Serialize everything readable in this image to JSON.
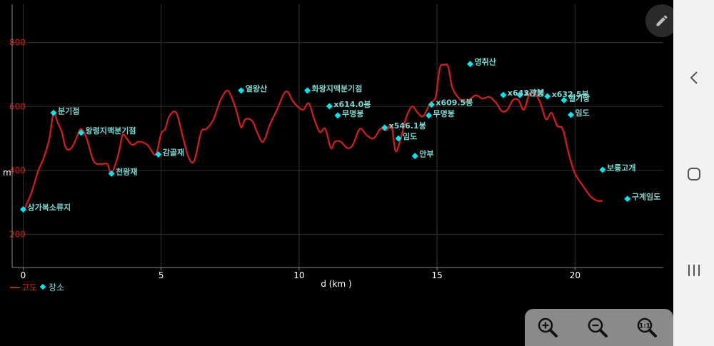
{
  "chart_data": {
    "type": "line",
    "xlabel": "d (km )",
    "ylabel": "m",
    "xlim": [
      -0.4,
      23.2
    ],
    "ylim": [
      96,
      920
    ],
    "x_ticks": [
      0,
      5,
      10,
      15,
      20
    ],
    "y_ticks": [
      200,
      400,
      600,
      800
    ],
    "grid": true,
    "legend": [
      {
        "label": "고도",
        "color": "#c81e1e",
        "shape": "line"
      },
      {
        "label": "장소",
        "color": "#00e6f0",
        "shape": "diamond"
      }
    ],
    "series": [
      {
        "name": "고도",
        "color": "#c81e1e",
        "x": [
          0.05,
          0.3,
          0.55,
          0.75,
          0.95,
          1.1,
          1.25,
          1.4,
          1.55,
          1.75,
          1.95,
          2.1,
          2.3,
          2.55,
          2.8,
          3.05,
          3.2,
          3.45,
          3.6,
          3.75,
          3.95,
          4.2,
          4.5,
          4.8,
          5.0,
          5.15,
          5.3,
          5.55,
          5.8,
          6.0,
          6.2,
          6.45,
          6.65,
          6.9,
          7.15,
          7.4,
          7.6,
          7.75,
          7.9,
          8.05,
          8.3,
          8.5,
          8.7,
          8.95,
          9.2,
          9.45,
          9.6,
          9.75,
          9.95,
          10.15,
          10.35,
          10.55,
          10.75,
          10.95,
          11.15,
          11.3,
          11.5,
          11.75,
          11.95,
          12.2,
          12.45,
          12.7,
          12.95,
          13.15,
          13.35,
          13.5,
          13.7,
          13.9,
          14.1,
          14.3,
          14.5,
          14.75,
          14.95,
          15.1,
          15.25,
          15.4,
          15.55,
          15.75,
          15.95,
          16.15,
          16.4,
          16.65,
          16.9,
          17.15,
          17.35,
          17.55,
          17.75,
          17.95,
          18.15,
          18.35,
          18.55,
          18.75,
          18.95,
          19.15,
          19.35,
          19.55,
          19.75,
          19.95,
          20.1,
          20.3,
          20.55,
          20.8,
          21.0
        ],
        "values": [
          280,
          330,
          400,
          440,
          500,
          580,
          550,
          520,
          470,
          470,
          505,
          530,
          500,
          430,
          420,
          420,
          390,
          450,
          510,
          500,
          480,
          490,
          480,
          450,
          515,
          530,
          570,
          580,
          500,
          440,
          430,
          520,
          530,
          560,
          620,
          650,
          620,
          580,
          535,
          560,
          555,
          515,
          490,
          545,
          590,
          640,
          645,
          620,
          600,
          590,
          610,
          560,
          520,
          530,
          470,
          490,
          490,
          470,
          480,
          530,
          510,
          500,
          530,
          525,
          540,
          460,
          505,
          570,
          600,
          580,
          570,
          610,
          630,
          720,
          730,
          725,
          660,
          630,
          615,
          620,
          635,
          625,
          630,
          610,
          585,
          590,
          620,
          620,
          590,
          640,
          640,
          610,
          560,
          580,
          540,
          530,
          460,
          400,
          375,
          350,
          320,
          305,
          305
        ]
      }
    ],
    "places": [
      {
        "name": "상가복소류지",
        "x": 0.0,
        "y": 278
      },
      {
        "name": "분기점",
        "x": 1.1,
        "y": 580
      },
      {
        "name": "왕령지맥분기점",
        "x": 2.1,
        "y": 518
      },
      {
        "name": "천왕재",
        "x": 3.2,
        "y": 390
      },
      {
        "name": "감골재",
        "x": 4.9,
        "y": 450
      },
      {
        "name": "열왕산",
        "x": 7.9,
        "y": 650
      },
      {
        "name": "화왕지맥분기점",
        "x": 10.3,
        "y": 650
      },
      {
        "name": "x614.0봉",
        "x": 11.1,
        "y": 601
      },
      {
        "name": "무명봉",
        "x": 11.4,
        "y": 572
      },
      {
        "name": "x546.1봉",
        "x": 13.1,
        "y": 534
      },
      {
        "name": "임도",
        "x": 13.6,
        "y": 500
      },
      {
        "name": "안부",
        "x": 14.2,
        "y": 445
      },
      {
        "name": "x609.5봉",
        "x": 14.8,
        "y": 606
      },
      {
        "name": "무명봉",
        "x": 14.7,
        "y": 572
      },
      {
        "name": "영취산",
        "x": 16.2,
        "y": 733
      },
      {
        "name": "x643.7봉",
        "x": 17.4,
        "y": 636
      },
      {
        "name": "x관봉",
        "x": 18.0,
        "y": 636
      },
      {
        "name": "x632.5봉",
        "x": 19.0,
        "y": 632
      },
      {
        "name": "헬기장",
        "x": 19.6,
        "y": 620
      },
      {
        "name": "임도",
        "x": 19.85,
        "y": 574
      },
      {
        "name": "보룡고개",
        "x": 21.0,
        "y": 402
      },
      {
        "name": "구계임도",
        "x": 21.9,
        "y": 311
      }
    ]
  },
  "toolbar": {
    "zoom_in": "zoom-in",
    "zoom_out": "zoom-out",
    "zoom_fit": "zoom-fit"
  }
}
